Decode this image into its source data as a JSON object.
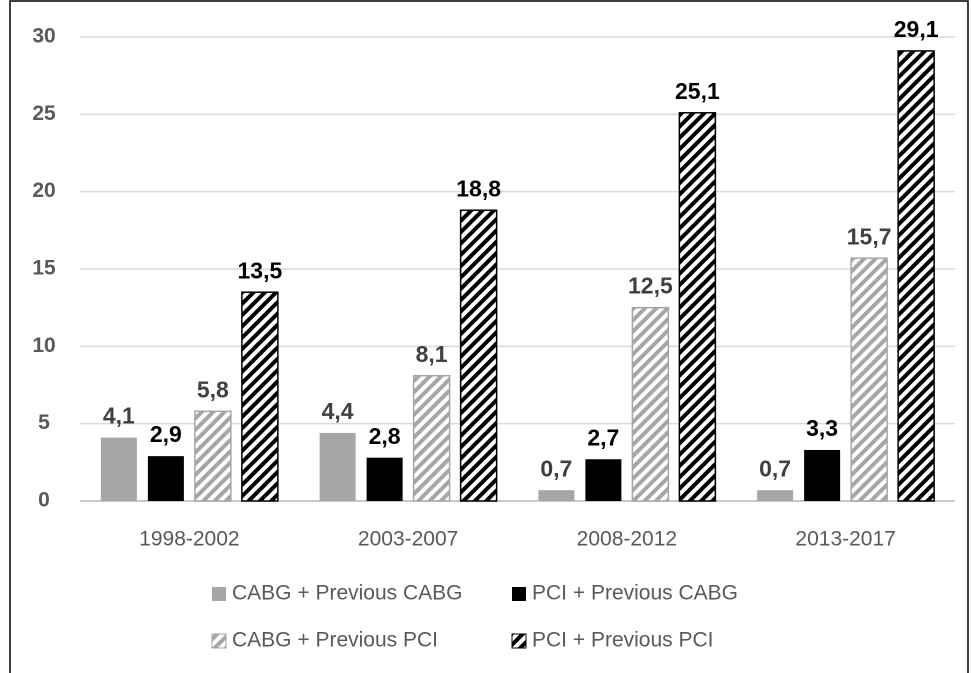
{
  "chart_data": {
    "type": "bar",
    "categories": [
      "1998-2002",
      "2003-2007",
      "2008-2012",
      "2013-2017"
    ],
    "series": [
      {
        "name": "CABG + Previous CABG",
        "color": "#a6a6a6",
        "hatch": false,
        "values": [
          4.1,
          4.4,
          0.7,
          0.7
        ],
        "value_labels": [
          "4,1",
          "4,4",
          "0,7",
          "0,7"
        ]
      },
      {
        "name": "PCI + Previous CABG",
        "color": "#000000",
        "hatch": false,
        "values": [
          2.9,
          2.8,
          2.7,
          3.3
        ],
        "value_labels": [
          "2,9",
          "2,8",
          "2,7",
          "3,3"
        ]
      },
      {
        "name": "CABG + Previous PCI",
        "color": "#a6a6a6",
        "hatch": true,
        "values": [
          5.8,
          8.1,
          12.5,
          15.7
        ],
        "value_labels": [
          "5,8",
          "8,1",
          "12,5",
          "15,7"
        ]
      },
      {
        "name": "PCI + Previous PCI",
        "color": "#000000",
        "hatch": true,
        "values": [
          13.5,
          18.8,
          25.1,
          29.1
        ],
        "value_labels": [
          "13,5",
          "18,8",
          "25,1",
          "29,1"
        ]
      }
    ],
    "ylim": [
      0,
      30
    ],
    "yticks": [
      0,
      5,
      10,
      15,
      20,
      25,
      30
    ],
    "grid": true
  }
}
